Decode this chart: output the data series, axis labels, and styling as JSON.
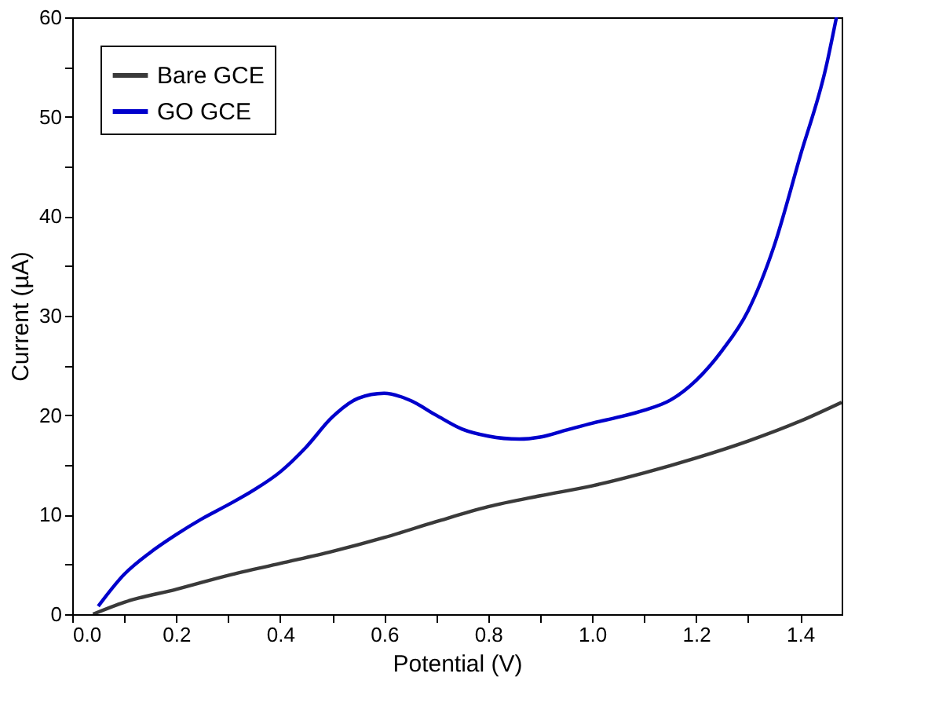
{
  "chart_data": {
    "type": "line",
    "xlabel": "Potential (V)",
    "ylabel": "Current (µA)",
    "xlim": [
      0,
      1.48
    ],
    "ylim": [
      0,
      60
    ],
    "xticks": [
      {
        "value": 0,
        "label": "0.0"
      },
      {
        "value": 0.1,
        "label": null
      },
      0.2,
      {
        "value": 0.3,
        "label": null
      },
      0.4,
      {
        "value": 0.5,
        "label": null
      },
      0.6,
      {
        "value": 0.7,
        "label": null
      },
      0.8,
      {
        "value": 0.9,
        "label": null
      },
      {
        "value": 1,
        "label": "1.0"
      },
      {
        "value": 1.1,
        "label": null
      },
      1.2,
      {
        "value": 1.3,
        "label": null
      },
      1.4
    ],
    "yticks": [
      0,
      {
        "value": 5,
        "label": null
      },
      10,
      {
        "value": 15,
        "label": null
      },
      20,
      {
        "value": 25,
        "label": null
      },
      30,
      {
        "value": 35,
        "label": null
      },
      40,
      {
        "value": 45,
        "label": null
      },
      50,
      {
        "value": 55,
        "label": null
      },
      60
    ],
    "grid": false,
    "legend": "top left",
    "line_style": "solid",
    "marker": "none",
    "series": [
      {
        "name": "Bare GCE",
        "color": "#3a3a3a",
        "x": [
          0.04,
          0.1,
          0.2,
          0.3,
          0.4,
          0.5,
          0.6,
          0.7,
          0.8,
          0.9,
          1.0,
          1.1,
          1.2,
          1.3,
          1.4,
          1.48
        ],
        "values": [
          0,
          1.2,
          2.5,
          3.9,
          5.1,
          6.3,
          7.7,
          9.3,
          10.8,
          11.9,
          12.9,
          14.2,
          15.7,
          17.4,
          19.4,
          21.3
        ]
      },
      {
        "name": "GO GCE",
        "color": "#0000cc",
        "x": [
          0.05,
          0.1,
          0.15,
          0.2,
          0.25,
          0.3,
          0.35,
          0.4,
          0.45,
          0.5,
          0.55,
          0.6,
          0.65,
          0.7,
          0.75,
          0.8,
          0.86,
          0.9,
          0.95,
          1.0,
          1.05,
          1.1,
          1.15,
          1.2,
          1.25,
          1.3,
          1.35,
          1.4,
          1.45,
          1.47
        ],
        "values": [
          0.8,
          4,
          6.2,
          8,
          9.6,
          11,
          12.5,
          14.3,
          16.8,
          19.8,
          21.7,
          22.2,
          21.5,
          20,
          18.6,
          17.9,
          17.6,
          17.8,
          18.5,
          19.2,
          19.8,
          20.5,
          21.5,
          23.5,
          26.5,
          30.5,
          37,
          46,
          55,
          60
        ]
      }
    ]
  }
}
